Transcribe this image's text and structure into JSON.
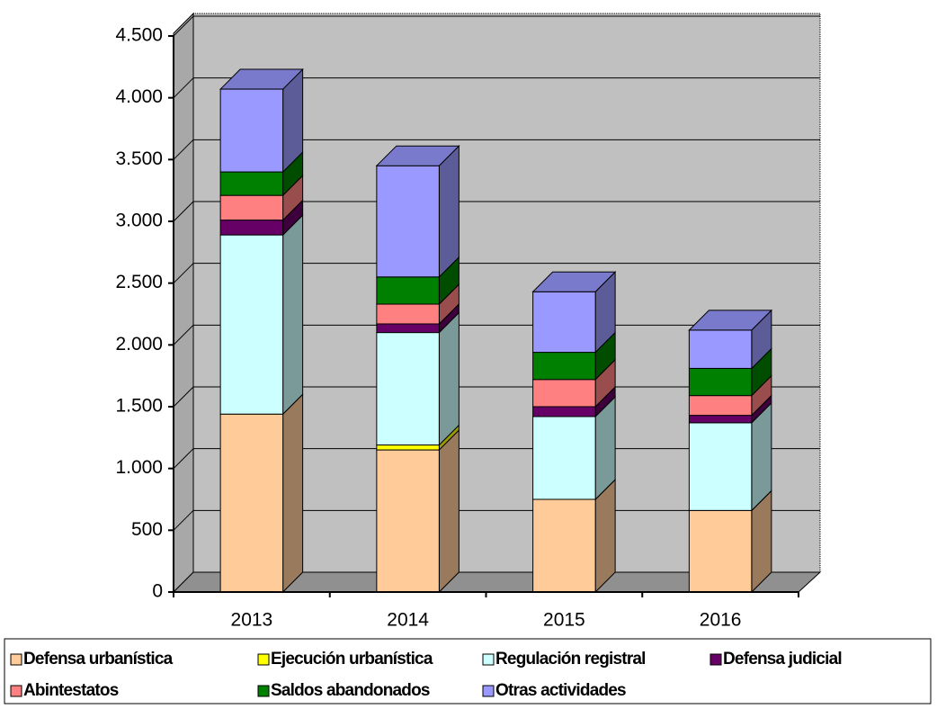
{
  "chart_data": {
    "type": "bar3d_stacked",
    "categories": [
      "2013",
      "2014",
      "2015",
      "2016"
    ],
    "series": [
      {
        "name": "Defensa urbanística",
        "color": "#ffcc99",
        "values": [
          1440,
          1150,
          750,
          660
        ]
      },
      {
        "name": "Ejecución urbanística",
        "color": "#ffff00",
        "values": [
          0,
          40,
          0,
          0
        ]
      },
      {
        "name": "Regulación registral",
        "color": "#ccffff",
        "values": [
          1450,
          910,
          670,
          710
        ]
      },
      {
        "name": "Defensa judicial",
        "color": "#660066",
        "values": [
          120,
          70,
          80,
          60
        ]
      },
      {
        "name": "Abintestatos",
        "color": "#ff8080",
        "values": [
          200,
          160,
          220,
          160
        ]
      },
      {
        "name": "Saldos abandonados",
        "color": "#008000",
        "values": [
          190,
          220,
          220,
          220
        ]
      },
      {
        "name": "Otras actividades",
        "color": "#9999ff",
        "values": [
          670,
          900,
          490,
          310
        ]
      }
    ],
    "ylim": [
      0,
      4500
    ],
    "yticks": [
      0,
      500,
      {
        "value": 1000,
        "label": "1.000"
      },
      {
        "value": 1500,
        "label": "1.500"
      },
      {
        "value": 2000,
        "label": "2.000"
      },
      {
        "value": 2500,
        "label": "2.500"
      },
      {
        "value": 3000,
        "label": "3.000"
      },
      {
        "value": 3500,
        "label": "3.500"
      },
      {
        "value": 4000,
        "label": "4.000"
      },
      {
        "value": 4500,
        "label": "4.500"
      }
    ],
    "grid": true
  }
}
